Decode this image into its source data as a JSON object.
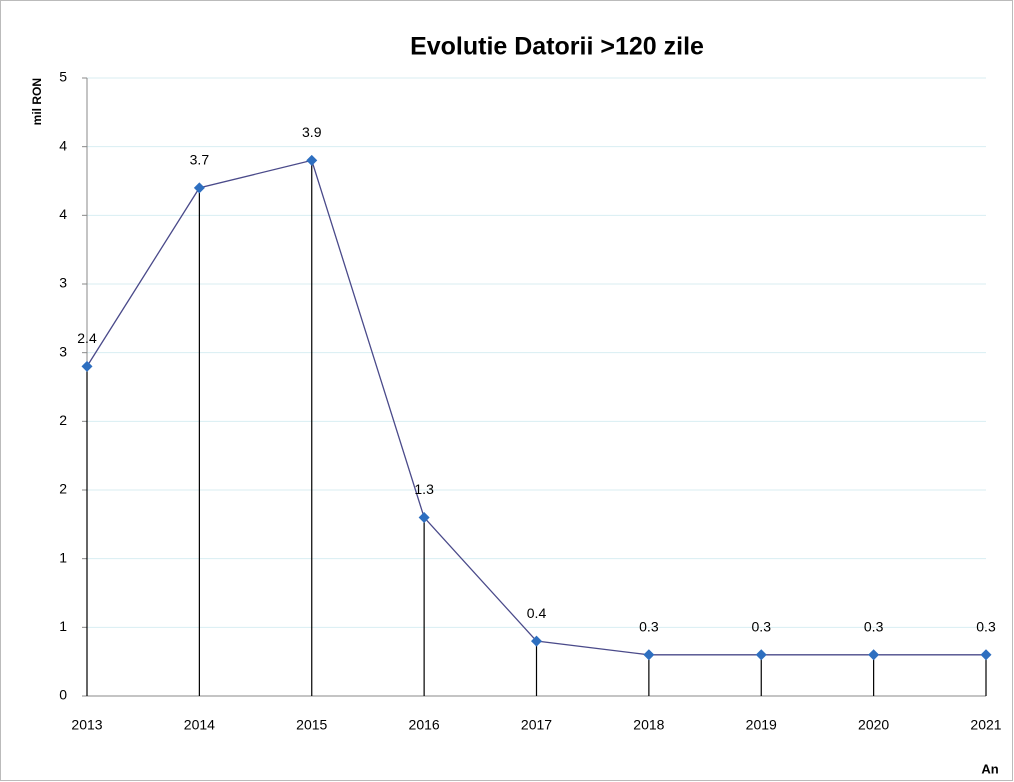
{
  "chart_data": {
    "type": "line",
    "title": "Evolutie Datorii >120 zile",
    "y_label": "mil RON",
    "x_label": "An",
    "categories": [
      "2013",
      "2014",
      "2015",
      "2016",
      "2017",
      "2018",
      "2019",
      "2020",
      "2021"
    ],
    "series": [
      {
        "name": "Datorii >120 zile",
        "color": "#4a4a8a",
        "marker_color": "#2e6fc0",
        "values": [
          2.4,
          3.7,
          3.9,
          1.3,
          0.4,
          0.3,
          0.3,
          0.3,
          0.3
        ]
      }
    ],
    "ylim": [
      0,
      4.5
    ],
    "yticks": [
      0,
      {
        "value": 0.5,
        "label": "1"
      },
      {
        "value": 1,
        "label": "1"
      },
      {
        "value": 1.5,
        "label": "2"
      },
      {
        "value": 2,
        "label": "2"
      },
      {
        "value": 2.5,
        "label": "3"
      },
      {
        "value": 3,
        "label": "3"
      },
      {
        "value": 3.5,
        "label": "4"
      },
      {
        "value": 4,
        "label": "4"
      },
      {
        "value": 4.5,
        "label": "5"
      }
    ],
    "grid": true,
    "drop_lines": true
  }
}
